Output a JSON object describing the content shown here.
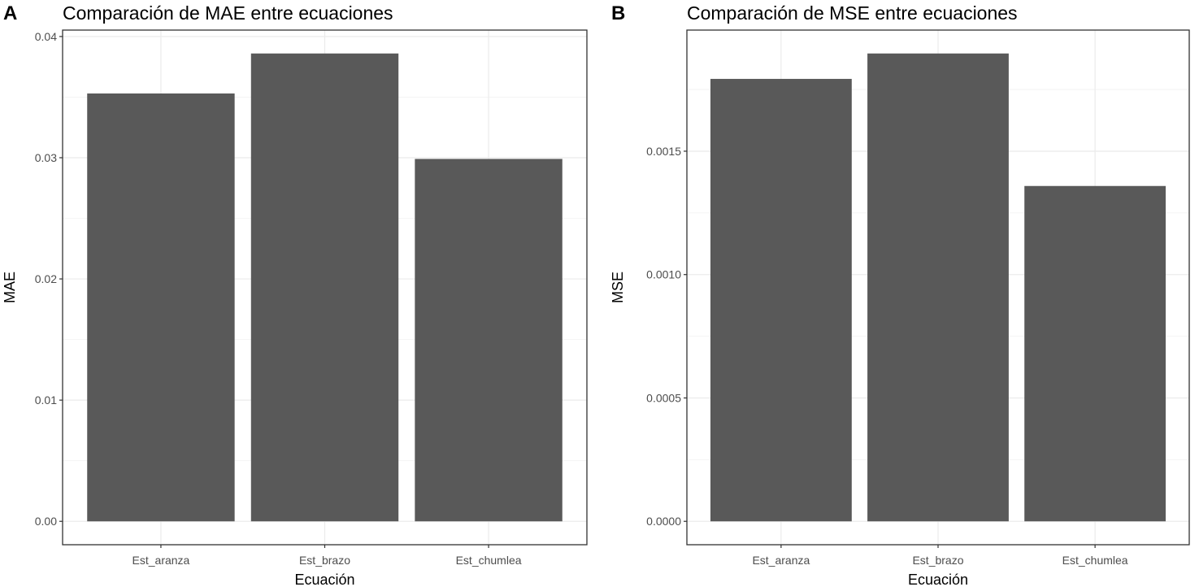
{
  "chart_data": [
    {
      "type": "bar",
      "tag": "A",
      "title": "Comparación de MAE entre ecuaciones",
      "xlabel": "Ecuación",
      "ylabel": "MAE",
      "categories": [
        "Est_aranza",
        "Est_brazo",
        "Est_chumlea"
      ],
      "values": [
        0.0353,
        0.0386,
        0.0299
      ],
      "yticks": [
        0,
        0.01,
        0.02,
        0.03,
        0.04
      ],
      "ytick_labels": [
        "0.00",
        "0.01",
        "0.02",
        "0.03",
        "0.04"
      ],
      "grid": true,
      "bar_color": "#595959"
    },
    {
      "type": "bar",
      "tag": "B",
      "title": "Comparación de MSE entre ecuaciones",
      "xlabel": "Ecuación",
      "ylabel": "MSE",
      "categories": [
        "Est_aranza",
        "Est_brazo",
        "Est_chumlea"
      ],
      "values": [
        0.001793,
        0.001896,
        0.001359
      ],
      "yticks": [
        0,
        0.0005,
        0.001,
        0.0015
      ],
      "ytick_labels": [
        "0.0000",
        "0.0005",
        "0.0010",
        "0.0015"
      ],
      "grid": true,
      "bar_color": "#595959"
    }
  ]
}
